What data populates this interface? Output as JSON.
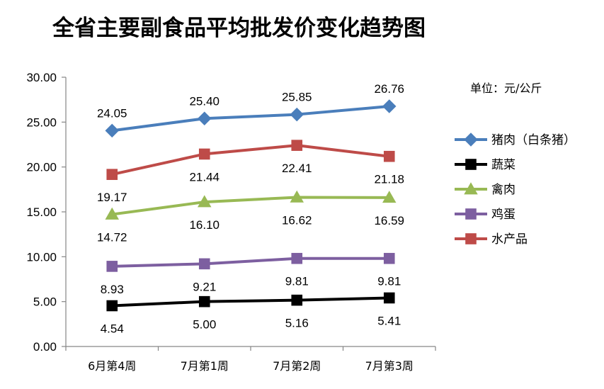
{
  "chart_data": {
    "type": "line",
    "title": "全省主要副食品平均批发价变化趋势图",
    "unit_note": "单位：元/公斤",
    "categories": [
      "6月第4周",
      "7月第1周",
      "7月第2周",
      "7月第3周"
    ],
    "ylim": [
      0,
      30
    ],
    "yticks": [
      "0.00",
      "5.00",
      "10.00",
      "15.00",
      "20.00",
      "25.00",
      "30.00"
    ],
    "grid": false,
    "legend_position": "right",
    "series": [
      {
        "name": "猪肉（白条猪）",
        "values": [
          24.05,
          25.4,
          25.85,
          26.76
        ],
        "labels": [
          "24.05",
          "25.40",
          "25.85",
          "26.76"
        ],
        "color": "#4A7EBB",
        "marker": "diamond",
        "label_pos": "above"
      },
      {
        "name": "蔬菜",
        "values": [
          4.54,
          5.0,
          5.16,
          5.41
        ],
        "labels": [
          "4.54",
          "5.00",
          "5.16",
          "5.41"
        ],
        "color": "#000000",
        "marker": "square",
        "label_pos": "below"
      },
      {
        "name": "禽肉",
        "values": [
          14.72,
          16.1,
          16.62,
          16.59
        ],
        "labels": [
          "14.72",
          "16.10",
          "16.62",
          "16.59"
        ],
        "color": "#98B954",
        "marker": "triangle",
        "label_pos": "below"
      },
      {
        "name": "鸡蛋",
        "values": [
          8.93,
          9.21,
          9.81,
          9.81
        ],
        "labels": [
          "8.93",
          "9.21",
          "9.81",
          "9.81"
        ],
        "color": "#7D5FA0",
        "marker": "square",
        "label_pos": "below"
      },
      {
        "name": "水产品",
        "values": [
          19.17,
          21.44,
          22.41,
          21.18
        ],
        "labels": [
          "19.17",
          "21.44",
          "22.41",
          "21.18"
        ],
        "color": "#BE4B48",
        "marker": "square",
        "label_pos": "below"
      }
    ]
  }
}
